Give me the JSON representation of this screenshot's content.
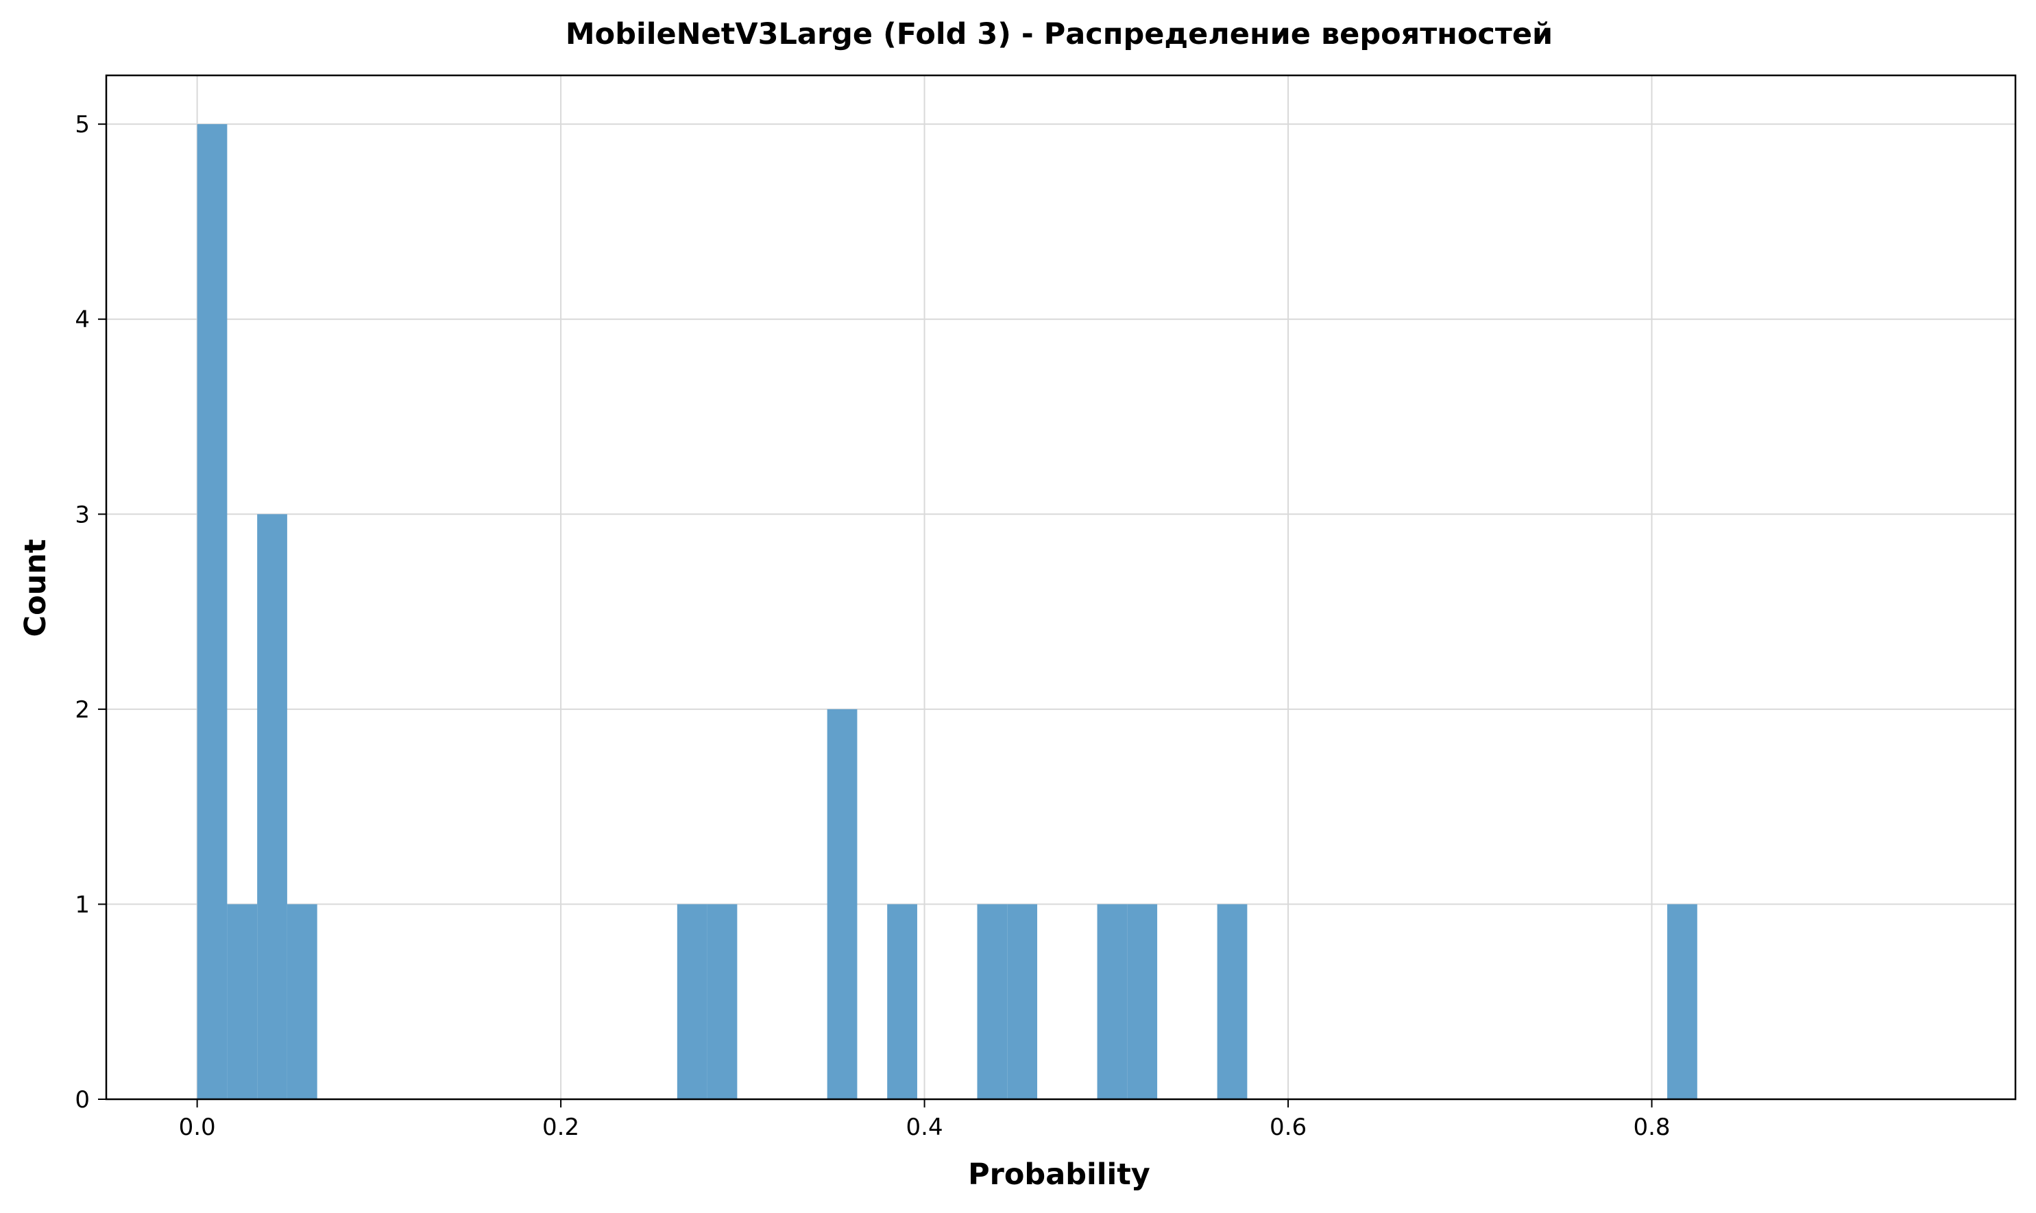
{
  "chart_data": {
    "type": "bar",
    "histogram": true,
    "title": "MobileNetV3Large (Fold 3) - Распределение вероятностей",
    "xlabel": "Probability",
    "ylabel": "Count",
    "xlim": [
      -0.05,
      1.0
    ],
    "ylim": [
      0,
      5.25
    ],
    "x_ticks": [
      0.0,
      0.2,
      0.4,
      0.6,
      0.8
    ],
    "x_tick_labels": [
      "0.0",
      "0.2",
      "0.4",
      "0.6",
      "0.8"
    ],
    "y_ticks": [
      0,
      1,
      2,
      3,
      4,
      5
    ],
    "y_tick_labels": [
      "0",
      "1",
      "2",
      "3",
      "4",
      "5"
    ],
    "grid": true,
    "bar_color": "#62a0cb",
    "bins": [
      {
        "x0": 0.0,
        "x1": 0.0165,
        "count": 5
      },
      {
        "x0": 0.0165,
        "x1": 0.033,
        "count": 1
      },
      {
        "x0": 0.033,
        "x1": 0.0495,
        "count": 3
      },
      {
        "x0": 0.0495,
        "x1": 0.066,
        "count": 1
      },
      {
        "x0": 0.264,
        "x1": 0.2805,
        "count": 1
      },
      {
        "x0": 0.2805,
        "x1": 0.297,
        "count": 1
      },
      {
        "x0": 0.3465,
        "x1": 0.363,
        "count": 2
      },
      {
        "x0": 0.3795,
        "x1": 0.396,
        "count": 1
      },
      {
        "x0": 0.429,
        "x1": 0.4455,
        "count": 1
      },
      {
        "x0": 0.4455,
        "x1": 0.462,
        "count": 1
      },
      {
        "x0": 0.495,
        "x1": 0.5115,
        "count": 1
      },
      {
        "x0": 0.5115,
        "x1": 0.528,
        "count": 1
      },
      {
        "x0": 0.561,
        "x1": 0.5775,
        "count": 1
      },
      {
        "x0": 0.8085,
        "x1": 0.825,
        "count": 1
      }
    ]
  }
}
